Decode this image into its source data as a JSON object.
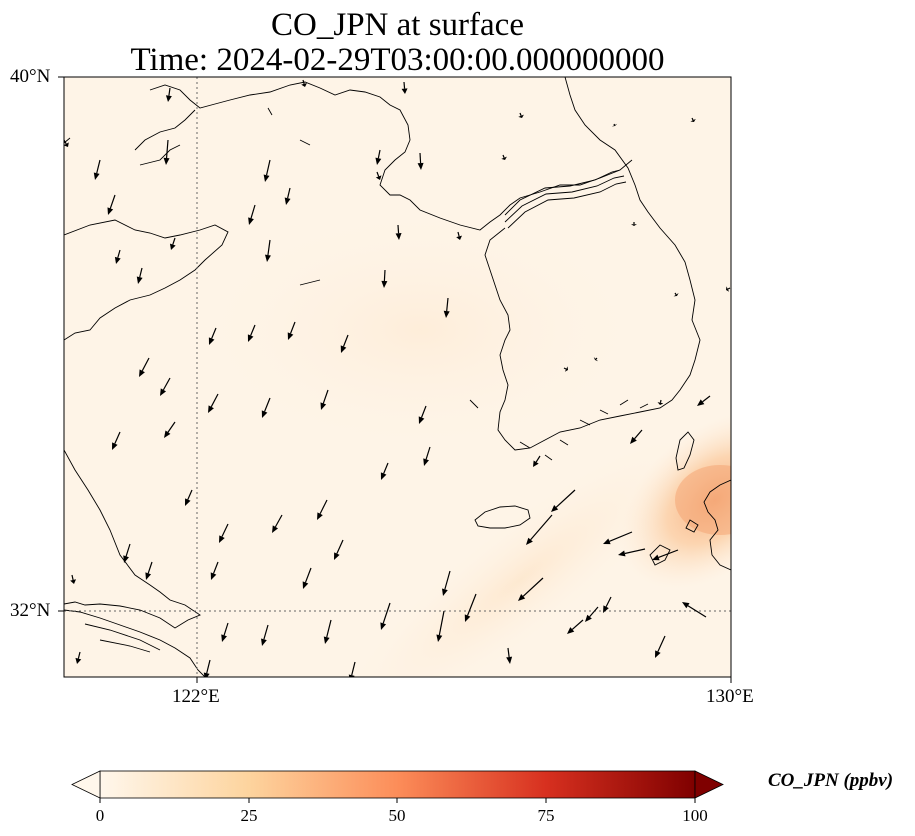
{
  "title": {
    "line1": "CO_JPN at surface",
    "line2": "Time: 2024-02-29T03:00:00.000000000"
  },
  "map": {
    "lat_ticks": [
      "40°N",
      "32°N"
    ],
    "lon_ticks": [
      "122°E",
      "130°E"
    ],
    "extent": {
      "lon_min": 120.0,
      "lon_max": 130.0,
      "lat_min": 31.0,
      "lat_max": 40.0
    },
    "gridlines": {
      "lon": [
        122,
        130
      ],
      "lat": [
        32,
        40
      ],
      "style": "dotted"
    },
    "field_hotspot": "east of Tsushima / northern Kyushu, ~25-40 ppbv",
    "arrows": "wind vectors, generally north-to-south over the Yellow Sea, south-westerly near Kyushu"
  },
  "colorbar": {
    "label": "CO_JPN (ppbv)",
    "ticks": [
      "0",
      "25",
      "50",
      "75",
      "100"
    ],
    "min": 0,
    "max": 100,
    "colormap": "OrRd",
    "colors": [
      "#fff7ec",
      "#fdd49e",
      "#fc8d59",
      "#d7301f",
      "#7f0000"
    ]
  }
}
